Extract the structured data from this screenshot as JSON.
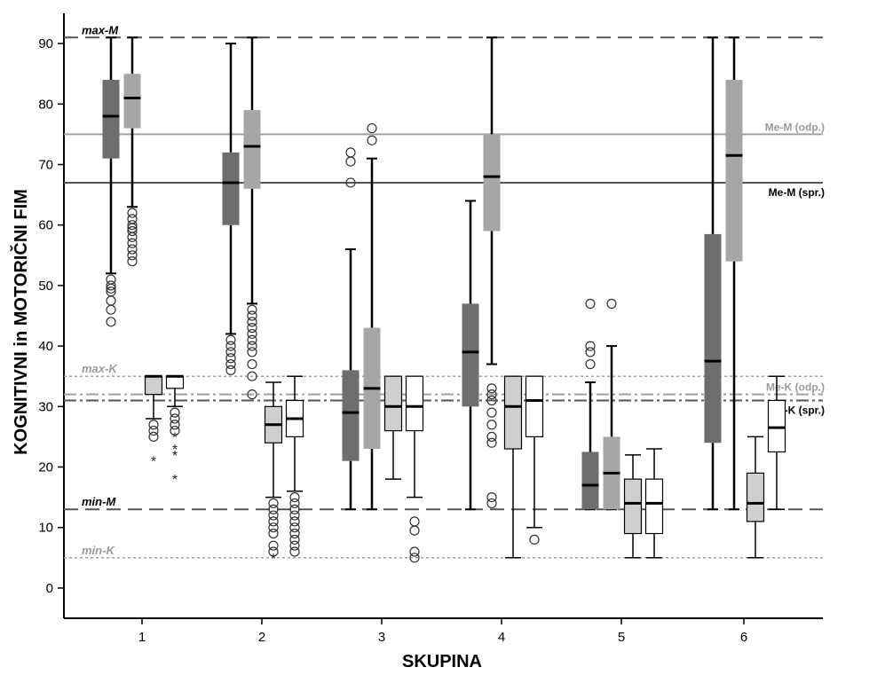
{
  "chart_data": {
    "type": "box",
    "xlabel": "SKUPINA",
    "ylabel": "KOGNITIVNI in MOTORIČNI FIM",
    "ylim": [
      -5,
      95
    ],
    "yticks": [
      0,
      10,
      20,
      30,
      40,
      50,
      60,
      70,
      80,
      90
    ],
    "categories": [
      "1",
      "2",
      "3",
      "4",
      "5",
      "6"
    ],
    "colors": {
      "motor_admission": "#6e6e6e",
      "motor_discharge": "#a6a6a6",
      "cognitive_admission": "#cfcfcf",
      "cognitive_discharge": "#ffffff",
      "ref_dark": "#555555",
      "ref_light": "#a0a0a0"
    },
    "groups": [
      {
        "category": "1",
        "boxes": [
          {
            "fill": "motor_admission",
            "whisker_style": "bar",
            "min": 52,
            "q1": 71,
            "median": 78,
            "q3": 84,
            "max": 91,
            "outliers": [
              44,
              46,
              47.5,
              49,
              49.5,
              50,
              51
            ],
            "extremes": []
          },
          {
            "fill": "motor_discharge",
            "whisker_style": "bar",
            "min": 63,
            "q1": 76,
            "median": 81,
            "q3": 85,
            "max": 91,
            "outliers": [
              54,
              55,
              56,
              57,
              58,
              59,
              59.5,
              60,
              61,
              62
            ],
            "extremes": []
          },
          {
            "fill": "cognitive_admission",
            "whisker_style": "cap",
            "min": 28,
            "q1": 32,
            "median": 35,
            "q3": 35,
            "max": 35,
            "outliers": [
              25,
              26,
              27
            ],
            "extremes": [
              21
            ]
          },
          {
            "fill": "cognitive_discharge",
            "whisker_style": "cap",
            "min": 30,
            "q1": 33,
            "median": 35,
            "q3": 35,
            "max": 35,
            "outliers": [
              26,
              27,
              28,
              29
            ],
            "extremes": [
              18,
              22,
              23,
              25
            ]
          }
        ]
      },
      {
        "category": "2",
        "boxes": [
          {
            "fill": "motor_admission",
            "whisker_style": "bar",
            "min": 42,
            "q1": 60,
            "median": 67,
            "q3": 72,
            "max": 90,
            "outliers": [
              36,
              37,
              38,
              39,
              40,
              41
            ],
            "extremes": []
          },
          {
            "fill": "motor_discharge",
            "whisker_style": "bar",
            "min": 47,
            "q1": 66,
            "median": 73,
            "q3": 79,
            "max": 91,
            "outliers": [
              32,
              35,
              37,
              39,
              40,
              41,
              42,
              43,
              44,
              45,
              46
            ],
            "extremes": []
          },
          {
            "fill": "cognitive_admission",
            "whisker_style": "cap",
            "min": 15,
            "q1": 24,
            "median": 27,
            "q3": 30,
            "max": 34,
            "outliers": [
              6,
              7,
              9,
              10,
              11,
              12,
              13,
              14
            ],
            "extremes": [
              5
            ]
          },
          {
            "fill": "cognitive_discharge",
            "whisker_style": "cap",
            "min": 16,
            "q1": 25,
            "median": 28,
            "q3": 31,
            "max": 35,
            "outliers": [
              6,
              7,
              8,
              9,
              10,
              11,
              12,
              13,
              14,
              15
            ],
            "extremes": []
          }
        ]
      },
      {
        "category": "3",
        "boxes": [
          {
            "fill": "motor_admission",
            "whisker_style": "bar",
            "min": 13,
            "q1": 21,
            "median": 29,
            "q3": 36,
            "max": 56,
            "outliers": [
              67,
              70.5,
              72
            ],
            "extremes": []
          },
          {
            "fill": "motor_discharge",
            "whisker_style": "bar",
            "min": 13,
            "q1": 23,
            "median": 33,
            "q3": 43,
            "max": 71,
            "outliers": [
              74,
              76
            ],
            "extremes": []
          },
          {
            "fill": "cognitive_admission",
            "whisker_style": "cap",
            "min": 18,
            "q1": 26,
            "median": 30,
            "q3": 35,
            "max": 35,
            "outliers": [],
            "extremes": []
          },
          {
            "fill": "cognitive_discharge",
            "whisker_style": "cap",
            "min": 15,
            "q1": 26,
            "median": 30,
            "q3": 35,
            "max": 35,
            "outliers": [
              5,
              6,
              9.5,
              11
            ],
            "extremes": []
          }
        ]
      },
      {
        "category": "4",
        "boxes": [
          {
            "fill": "motor_admission",
            "whisker_style": "bar",
            "min": 13,
            "q1": 30,
            "median": 39,
            "q3": 47,
            "max": 64,
            "outliers": [],
            "extremes": []
          },
          {
            "fill": "motor_discharge",
            "whisker_style": "bar",
            "min": 37,
            "q1": 59,
            "median": 68,
            "q3": 75,
            "max": 91,
            "outliers": [
              14,
              15,
              24,
              25,
              27,
              29,
              31,
              32,
              33
            ],
            "extremes": []
          },
          {
            "fill": "cognitive_admission",
            "whisker_style": "cap",
            "min": 5,
            "q1": 23,
            "median": 30,
            "q3": 35,
            "max": 35,
            "outliers": [],
            "extremes": []
          },
          {
            "fill": "cognitive_discharge",
            "whisker_style": "cap",
            "min": 10,
            "q1": 25,
            "median": 31,
            "q3": 35,
            "max": 35,
            "outliers": [
              8
            ],
            "extremes": []
          }
        ]
      },
      {
        "category": "5",
        "boxes": [
          {
            "fill": "motor_admission",
            "whisker_style": "bar",
            "min": 13,
            "q1": 13,
            "median": 17,
            "q3": 22.5,
            "max": 34,
            "outliers": [
              37,
              39,
              40,
              47
            ],
            "extremes": []
          },
          {
            "fill": "motor_discharge",
            "whisker_style": "bar",
            "min": 13,
            "q1": 13,
            "median": 19,
            "q3": 25,
            "max": 40,
            "outliers": [
              47
            ],
            "extremes": []
          },
          {
            "fill": "cognitive_admission",
            "whisker_style": "cap",
            "min": 5,
            "q1": 9,
            "median": 14,
            "q3": 18,
            "max": 22,
            "outliers": [],
            "extremes": []
          },
          {
            "fill": "cognitive_discharge",
            "whisker_style": "cap",
            "min": 5,
            "q1": 9,
            "median": 14,
            "q3": 18,
            "max": 23,
            "outliers": [],
            "extremes": []
          }
        ]
      },
      {
        "category": "6",
        "boxes": [
          {
            "fill": "motor_admission",
            "whisker_style": "bar",
            "min": 13,
            "q1": 24,
            "median": 37.5,
            "q3": 58.5,
            "max": 91,
            "outliers": [],
            "extremes": []
          },
          {
            "fill": "motor_discharge",
            "whisker_style": "bar",
            "min": 13,
            "q1": 54,
            "median": 71.5,
            "q3": 84,
            "max": 91,
            "outliers": [],
            "extremes": []
          },
          {
            "fill": "cognitive_admission",
            "whisker_style": "cap",
            "min": 5,
            "q1": 11,
            "median": 14,
            "q3": 19,
            "max": 25,
            "outliers": [],
            "extremes": []
          },
          {
            "fill": "cognitive_discharge",
            "whisker_style": "cap",
            "min": 13,
            "q1": 22.5,
            "median": 26.5,
            "q3": 31,
            "max": 35,
            "outliers": [],
            "extremes": []
          }
        ]
      }
    ],
    "reference_lines": [
      {
        "name": "max-M",
        "value": 91,
        "style": "longdash",
        "color": "ref_dark",
        "label": "max-M",
        "label_side": "left"
      },
      {
        "name": "min-M",
        "value": 13,
        "style": "longdash",
        "color": "ref_dark",
        "label": "min-M",
        "label_side": "left"
      },
      {
        "name": "Me-M (odp.)",
        "value": 75,
        "style": "solid",
        "color": "ref_light",
        "label": "Me-M (odp.)",
        "label_side": "right"
      },
      {
        "name": "Me-M (spr.)",
        "value": 67,
        "style": "solid",
        "color": "ref_dark",
        "label": "Me-M (spr.)",
        "label_side": "right"
      },
      {
        "name": "max-K",
        "value": 35,
        "style": "dotted",
        "color": "ref_light",
        "label": "max-K",
        "label_side": "left"
      },
      {
        "name": "min-K",
        "value": 5,
        "style": "dotted",
        "color": "ref_light",
        "label": "min-K",
        "label_side": "left"
      },
      {
        "name": "Me-K (odp.)",
        "value": 32,
        "style": "dashdot",
        "color": "ref_light",
        "label": "Me-K (odp.)",
        "label_side": "right"
      },
      {
        "name": "Me-K (spr.)",
        "value": 31,
        "style": "dashdot",
        "color": "ref_dark",
        "label": "Me-K (spr.)",
        "label_side": "right"
      }
    ]
  }
}
